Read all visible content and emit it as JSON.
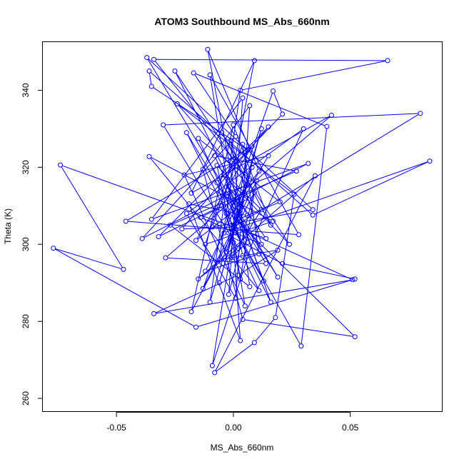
{
  "chart_data": {
    "type": "line",
    "title": "ATOM3 Southbound MS_Abs_660nm",
    "xlabel": "MS_Abs_660nm",
    "ylabel": "Theta (K)",
    "xlim": [
      -0.0815,
      0.0895
    ],
    "ylim": [
      256.5,
      352.5
    ],
    "x_ticks": [
      -0.05,
      0.0,
      0.05
    ],
    "x_tick_labels": [
      "-0.05",
      "0.00",
      "0.05"
    ],
    "y_ticks": [
      260,
      280,
      300,
      320,
      340
    ],
    "y_tick_labels": [
      "260",
      "280",
      "300",
      "320",
      "340"
    ],
    "grid": false,
    "legend": "none",
    "series_color": "#0000ff",
    "marker": "open-circle",
    "series": [
      {
        "points": [
          [
            0.0,
            305.0
          ],
          [
            0.005,
            312.0
          ],
          [
            -0.003,
            298.0
          ],
          [
            0.008,
            320.0
          ],
          [
            -0.006,
            290.0
          ],
          [
            0.012,
            330.0
          ],
          [
            -0.01,
            285.0
          ],
          [
            0.003,
            340.0
          ],
          [
            0.066,
            347.7
          ],
          [
            -0.034,
            348.0
          ],
          [
            0.0,
            322.0
          ],
          [
            -0.012,
            300.0
          ],
          [
            0.017,
            306.0
          ],
          [
            -0.036,
            322.8
          ],
          [
            0.011,
            288.0
          ],
          [
            0.004,
            297.0
          ],
          [
            -0.002,
            315.0
          ],
          [
            0.014,
            301.5
          ],
          [
            -0.074,
            320.6
          ],
          [
            -0.047,
            293.5
          ],
          [
            -0.077,
            299.0
          ],
          [
            -0.016,
            278.5
          ],
          [
            0.052,
            291.0
          ],
          [
            0.021,
            295.0
          ],
          [
            -0.004,
            303.0
          ],
          [
            0.084,
            321.6
          ],
          [
            0.034,
            307.6
          ],
          [
            -0.036,
            345.0
          ],
          [
            -0.035,
            341.0
          ],
          [
            0.006,
            324.5
          ],
          [
            -0.009,
            268.5
          ],
          [
            0.009,
            302.0
          ],
          [
            0.03,
            330.0
          ],
          [
            -0.02,
            308.0
          ],
          [
            0.001,
            286.0
          ],
          [
            0.007,
            336.0
          ],
          [
            -0.013,
            319.5
          ],
          [
            0.004,
            280.5
          ],
          [
            0.052,
            276.0
          ],
          [
            -0.005,
            310.0
          ],
          [
            -0.032,
            302.0
          ],
          [
            0.015,
            330.5
          ],
          [
            -0.022,
            304.0
          ],
          [
            0.0,
            304.5
          ],
          [
            0.08,
            334.0
          ],
          [
            -0.03,
            331.0
          ],
          [
            0.002,
            299.0
          ],
          [
            -0.015,
            291.0
          ],
          [
            0.035,
            317.8
          ],
          [
            -0.008,
            266.7
          ],
          [
            0.009,
            274.5
          ],
          [
            0.018,
            281.0
          ],
          [
            0.026,
            313.0
          ],
          [
            -0.024,
            336.5
          ],
          [
            0.006,
            315.5
          ],
          [
            -0.039,
            301.5
          ],
          [
            0.001,
            328.0
          ],
          [
            -0.017,
            344.5
          ],
          [
            0.04,
            330.6
          ],
          [
            0.029,
            273.6
          ],
          [
            -0.003,
            308.0
          ],
          [
            0.011,
            319.0
          ],
          [
            -0.011,
            350.6
          ],
          [
            0.003,
            306.0
          ],
          [
            0.014,
            295.0
          ],
          [
            -0.029,
            296.5
          ],
          [
            0.042,
            333.5
          ],
          [
            -0.018,
            313.3
          ],
          [
            0.009,
            347.7
          ],
          [
            0.0,
            320.0
          ],
          [
            -0.006,
            296.0
          ],
          [
            0.019,
            298.5
          ],
          [
            0.002,
            292.0
          ],
          [
            -0.034,
            282.0
          ],
          [
            0.051,
            290.8
          ],
          [
            0.005,
            303.5
          ],
          [
            -0.02,
            329.0
          ],
          [
            0.016,
            285.0
          ],
          [
            0.001,
            311.0
          ],
          [
            -0.008,
            323.0
          ],
          [
            0.027,
            319.0
          ],
          [
            -0.027,
            305.0
          ],
          [
            0.007,
            289.0
          ],
          [
            -0.001,
            327.0
          ],
          [
            0.012,
            300.0
          ],
          [
            -0.014,
            307.0
          ],
          [
            0.032,
            321.0
          ],
          [
            -0.035,
            306.5
          ],
          [
            0.004,
            338.0
          ],
          [
            -0.002,
            287.0
          ],
          [
            0.01,
            316.5
          ],
          [
            -0.013,
            288.5
          ],
          [
            0.017,
            339.8
          ],
          [
            0.021,
            333.8
          ],
          [
            -0.007,
            316.0
          ],
          [
            0.0,
            300.5
          ],
          [
            0.003,
            275.0
          ],
          [
            -0.019,
            310.5
          ],
          [
            0.006,
            307.5
          ],
          [
            -0.025,
            345.0
          ],
          [
            0.024,
            300.0
          ],
          [
            -0.004,
            318.0
          ],
          [
            0.013,
            290.5
          ],
          [
            0.001,
            303.0
          ],
          [
            -0.01,
            344.0
          ],
          [
            0.028,
            302.5
          ],
          [
            -0.046,
            306.0
          ],
          [
            0.008,
            325.5
          ],
          [
            -0.016,
            301.0
          ],
          [
            0.002,
            309.5
          ],
          [
            0.015,
            323.0
          ],
          [
            -0.021,
            318.0
          ],
          [
            0.005,
            284.0
          ],
          [
            -0.003,
            312.5
          ],
          [
            0.019,
            291.5
          ],
          [
            -0.037,
            348.5
          ],
          [
            0.034,
            309.0
          ],
          [
            -0.009,
            304.5
          ],
          [
            0.004,
            326.0
          ],
          [
            0.011,
            297.5
          ],
          [
            -0.012,
            293.0
          ],
          [
            0.007,
            317.0
          ],
          [
            -0.005,
            329.0
          ],
          [
            0.016,
            305.0
          ],
          [
            0.0,
            331.0
          ],
          [
            -0.018,
            282.5
          ],
          [
            0.009,
            313.5
          ],
          [
            0.003,
            291.0
          ],
          [
            -0.007,
            320.5
          ],
          [
            0.012,
            309.0
          ],
          [
            -0.001,
            296.5
          ],
          [
            0.006,
            300.5
          ],
          [
            -0.015,
            327.5
          ],
          [
            0.02,
            311.0
          ],
          [
            0.002,
            306.5
          ]
        ]
      }
    ]
  }
}
